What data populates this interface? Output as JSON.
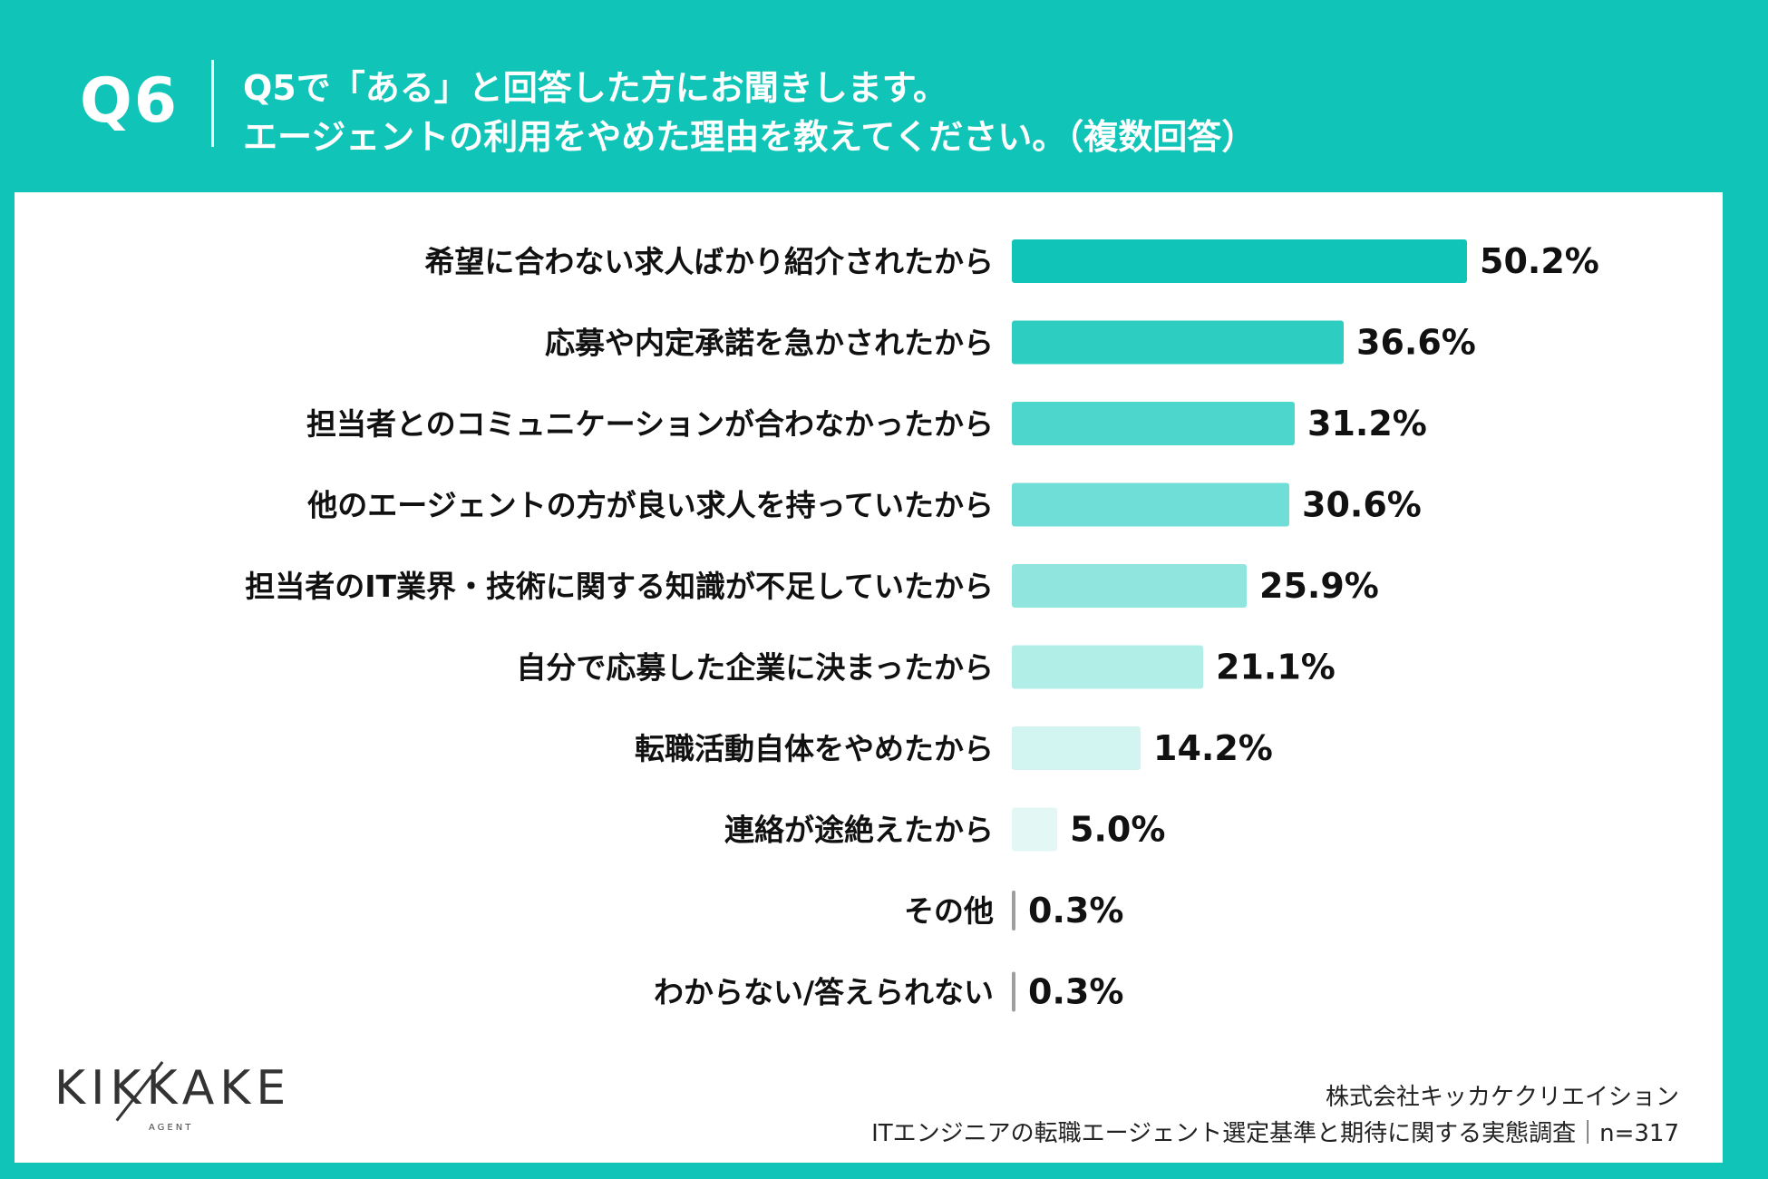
{
  "header": {
    "question_number": "Q6",
    "title_line1": "Q5で「ある」と回答した方にお聞きします。",
    "title_line2": "エージェントの利用をやめた理由を教えてください。（複数回答）"
  },
  "chart_data": {
    "type": "bar",
    "orientation": "horizontal",
    "categories": [
      "希望に合わない求人ばかり紹介されたから",
      "応募や内定承諾を急かされたから",
      "担当者とのコミュニケーションが合わなかったから",
      "他のエージェントの方が良い求人を持っていたから",
      "担当者のIT業界・技術に関する知識が不足していたから",
      "自分で応募した企業に決まったから",
      "転職活動自体をやめたから",
      "連絡が途絶えたから",
      "その他",
      "わからない/答えられない"
    ],
    "values": [
      50.2,
      36.6,
      31.2,
      30.6,
      25.9,
      21.1,
      14.2,
      5.0,
      0.3,
      0.3
    ],
    "value_labels": [
      "50.2%",
      "36.6%",
      "31.2%",
      "30.6%",
      "25.9%",
      "21.1%",
      "14.2%",
      "5.0%",
      "0.3%",
      "0.3%"
    ],
    "bar_colors": [
      "#10c4b8",
      "#2dcdc2",
      "#4dd6cc",
      "#6fded6",
      "#90e6df",
      "#b2eee8",
      "#d2f5f2",
      "#e3f7f5",
      "#9e9e9e",
      "#9e9e9e"
    ],
    "grid": false,
    "legend": "none"
  },
  "footer": {
    "logo_text": "KIKKAKE",
    "logo_sub": "AGENT",
    "company": "株式会社キッカケクリエイション",
    "survey": "ITエンジニアの転職エージェント選定基準と期待に関する実態調査｜n=317"
  },
  "colors": {
    "brand": "#10c4b8",
    "text": "#111111"
  }
}
